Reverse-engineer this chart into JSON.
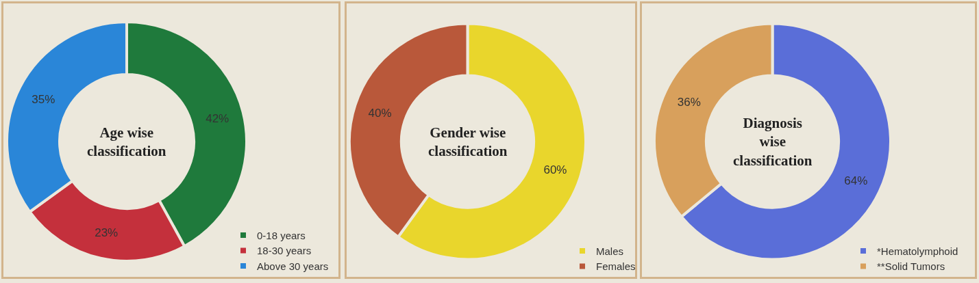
{
  "chart_data": [
    {
      "type": "donut",
      "title": "Age wise classification",
      "categories": [
        "0-18 years",
        "18-30 years",
        "Above 30 years"
      ],
      "values": [
        42,
        23,
        35
      ],
      "colors": [
        "#1f7a3c",
        "#c4303c",
        "#2a86d8"
      ],
      "value_labels": [
        "42%",
        "23%",
        "35%"
      ],
      "legend": "bottom right"
    },
    {
      "type": "donut",
      "title": "Gender wise classification",
      "categories": [
        "Males",
        "Females"
      ],
      "values": [
        60,
        40
      ],
      "colors": [
        "#e9d62c",
        "#b9583a"
      ],
      "value_labels": [
        "60%",
        "40%"
      ],
      "legend": "bottom right"
    },
    {
      "type": "donut",
      "title": "Diagnosis wise classification",
      "categories": [
        "*Hematolymphoid",
        "**Solid Tumors"
      ],
      "values": [
        64,
        36
      ],
      "colors": [
        "#5a6ed8",
        "#d8a05c"
      ],
      "value_labels": [
        "64%",
        "36%"
      ],
      "legend": "bottom right"
    }
  ]
}
